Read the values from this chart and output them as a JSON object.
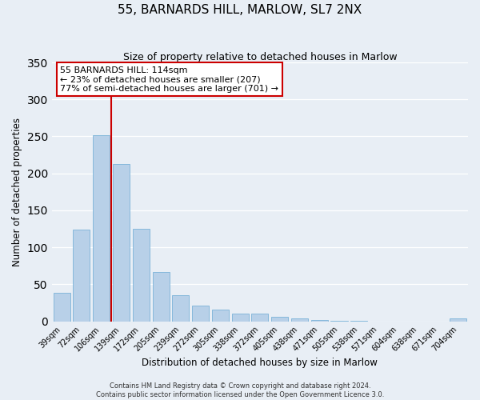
{
  "title": "55, BARNARDS HILL, MARLOW, SL7 2NX",
  "subtitle": "Size of property relative to detached houses in Marlow",
  "xlabel": "Distribution of detached houses by size in Marlow",
  "ylabel": "Number of detached properties",
  "categories": [
    "39sqm",
    "72sqm",
    "106sqm",
    "139sqm",
    "172sqm",
    "205sqm",
    "239sqm",
    "272sqm",
    "305sqm",
    "338sqm",
    "372sqm",
    "405sqm",
    "438sqm",
    "471sqm",
    "505sqm",
    "538sqm",
    "571sqm",
    "604sqm",
    "638sqm",
    "671sqm",
    "704sqm"
  ],
  "values": [
    38,
    124,
    252,
    213,
    125,
    67,
    35,
    21,
    16,
    10,
    10,
    6,
    4,
    2,
    1,
    1,
    0,
    0,
    0,
    0,
    4
  ],
  "bar_color": "#b8d0e8",
  "bar_edgecolor": "#6aaad4",
  "ylim": [
    0,
    350
  ],
  "yticks": [
    0,
    50,
    100,
    150,
    200,
    250,
    300,
    350
  ],
  "vline_x": 2.5,
  "vline_color": "#cc0000",
  "annotation_box_text": "55 BARNARDS HILL: 114sqm\n← 23% of detached houses are smaller (207)\n77% of semi-detached houses are larger (701) →",
  "footer_line1": "Contains HM Land Registry data © Crown copyright and database right 2024.",
  "footer_line2": "Contains public sector information licensed under the Open Government Licence 3.0.",
  "background_color": "#e8eef5",
  "plot_bg_color": "#e8eef5",
  "title_fontsize": 11,
  "subtitle_fontsize": 9,
  "xlabel_fontsize": 8.5,
  "ylabel_fontsize": 8.5,
  "tick_fontsize": 7,
  "annotation_fontsize": 8,
  "footer_fontsize": 6
}
